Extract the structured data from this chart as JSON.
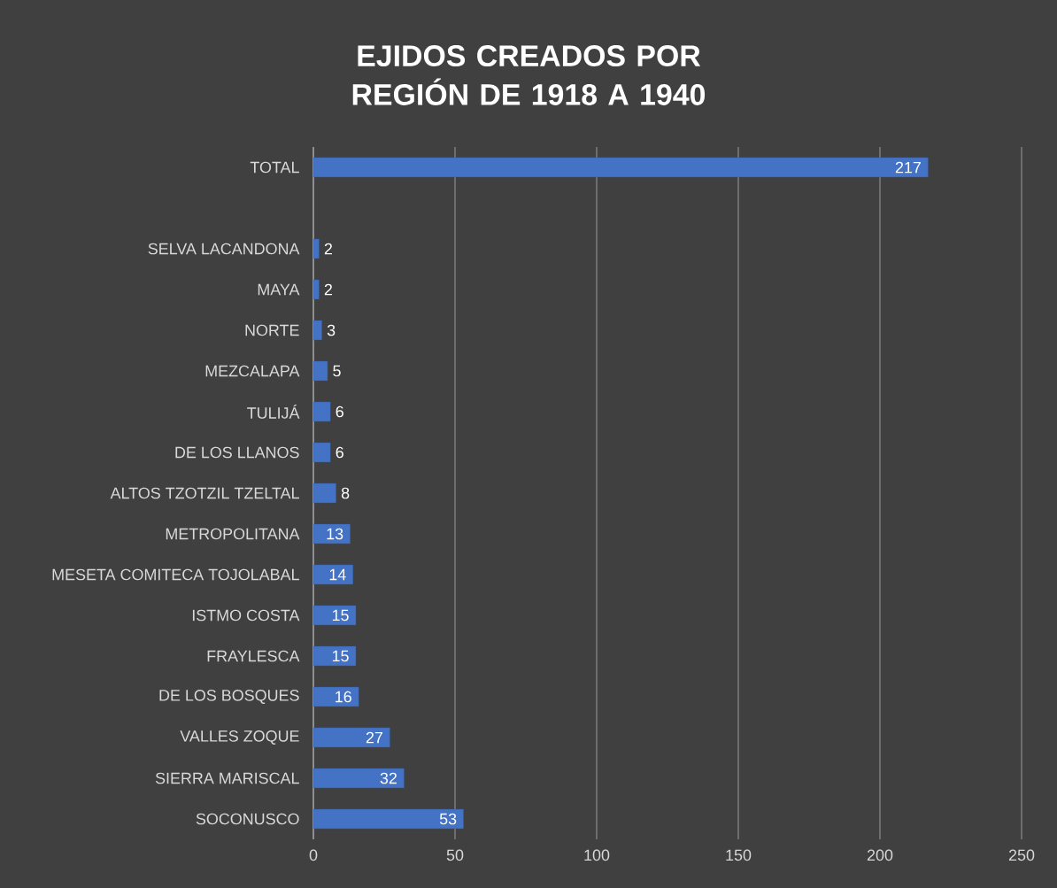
{
  "chart_data": {
    "type": "bar",
    "orientation": "horizontal",
    "title": "EJIDOS CREADOS POR REGIÓN DE 1918 A 1940",
    "categories": [
      "TOTAL",
      null,
      "SELVA LACANDONA",
      "MAYA",
      "NORTE",
      "MEZCALAPA",
      "TULIJÁ",
      "DE LOS LLANOS",
      "ALTOS TZOTZIL TZELTAL",
      "METROPOLITANA",
      "MESETA COMITECA TOJOLABAL",
      "ISTMO COSTA",
      "FRAYLESCA",
      "DE LOS BOSQUES",
      "VALLES ZOQUE",
      "SIERRA MARISCAL",
      "SOCONUSCO"
    ],
    "values": [
      217,
      null,
      2,
      2,
      3,
      5,
      6,
      6,
      8,
      13,
      14,
      15,
      15,
      16,
      27,
      32,
      53
    ],
    "color": "#4472c4",
    "xlim": [
      0,
      250
    ],
    "xticks": [
      0,
      50,
      100,
      150,
      200,
      250
    ],
    "grid": "x",
    "data_labels": true
  }
}
